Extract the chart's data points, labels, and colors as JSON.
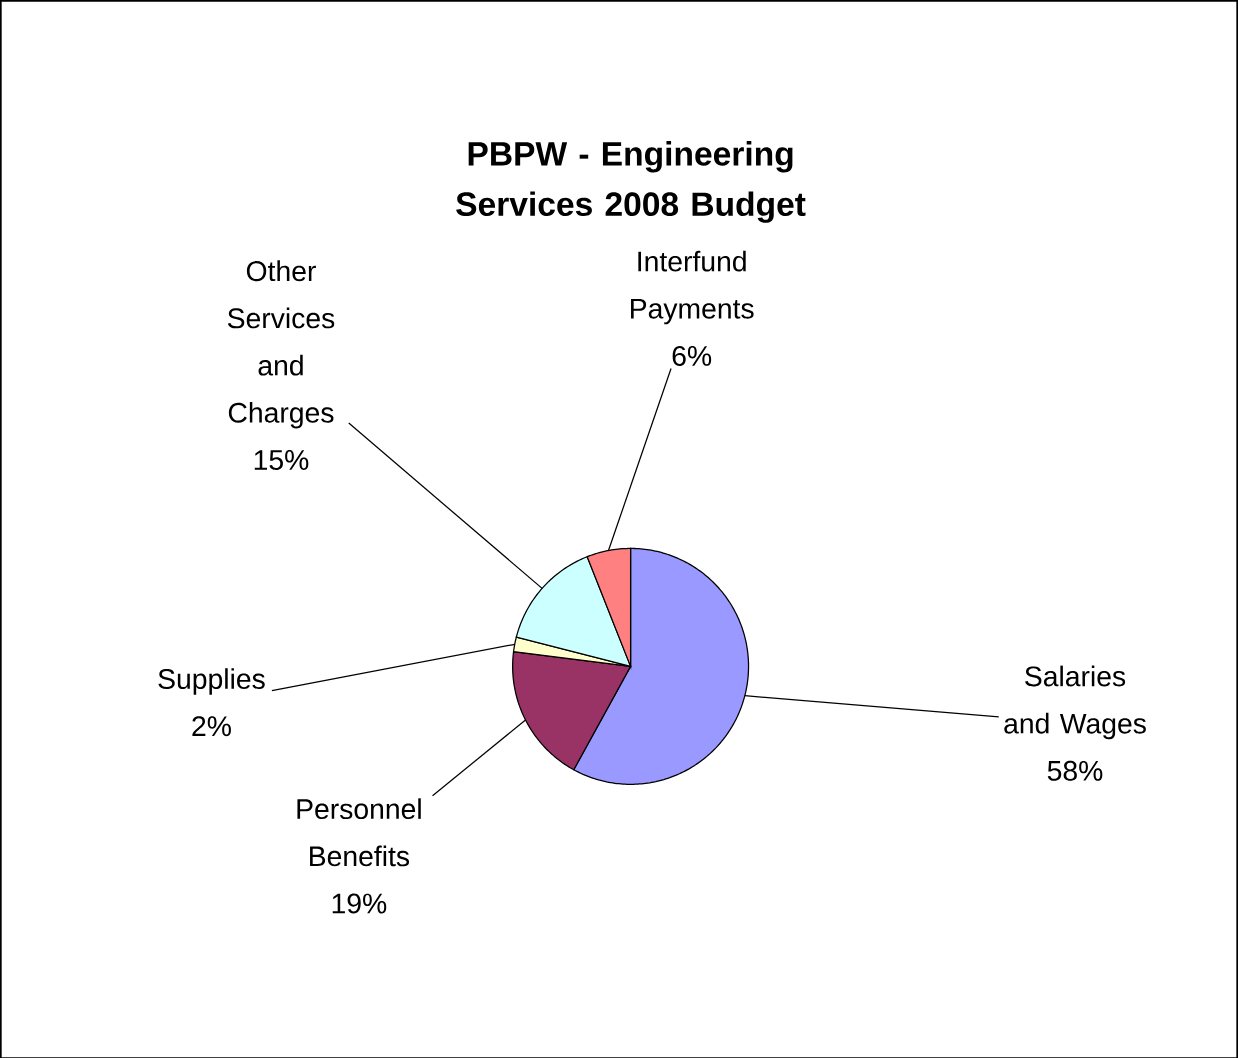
{
  "chart_data": {
    "type": "pie",
    "title": "PBPW - Engineering Services 2008 Budget",
    "categories": [
      "Salaries and Wages",
      "Personnel Benefits",
      "Supplies",
      "Other Services and Charges",
      "Interfund Payments"
    ],
    "values": [
      58,
      19,
      2,
      15,
      6
    ],
    "value_labels": [
      "58%",
      "19%",
      "2%",
      "15%",
      "6%"
    ],
    "colors": [
      "#9999ff",
      "#993366",
      "#ffffcc",
      "#ccffff",
      "#ff8080"
    ]
  }
}
